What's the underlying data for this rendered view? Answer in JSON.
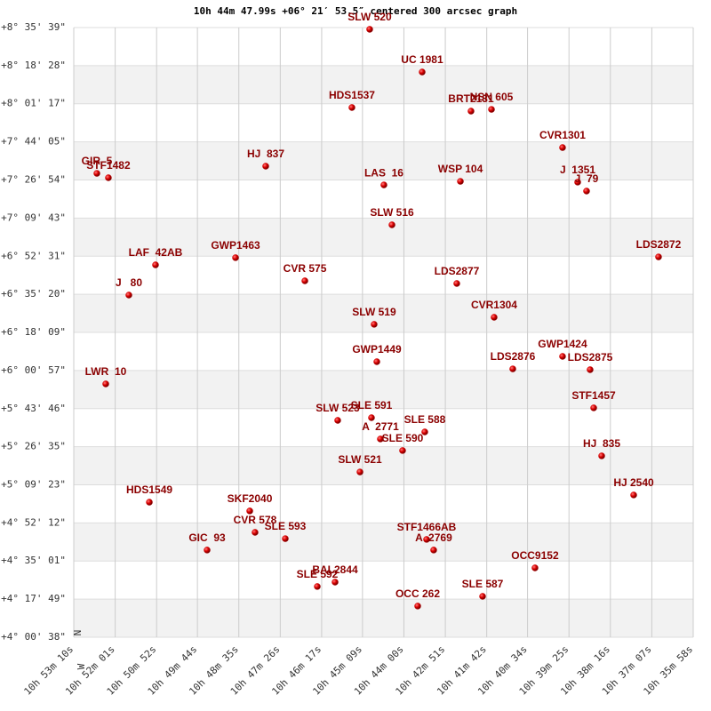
{
  "chart_data": {
    "type": "scatter",
    "title": "10h 44m 47.99s +06° 21′ 53.5″ centered 300 arcsec graph",
    "compass": {
      "north": "N",
      "west": "W"
    },
    "xlim": [
      3190,
      2158
    ],
    "xticks": [
      {
        "value": 3190,
        "label": "10h 53m 10s"
      },
      {
        "value": 3121,
        "label": "10h 52m 01s"
      },
      {
        "value": 3052,
        "label": "10h 50m 52s"
      },
      {
        "value": 2984,
        "label": "10h 49m 44s"
      },
      {
        "value": 2915,
        "label": "10h 48m 35s"
      },
      {
        "value": 2846,
        "label": "10h 47m 26s"
      },
      {
        "value": 2777,
        "label": "10h 46m 17s"
      },
      {
        "value": 2709,
        "label": "10h 45m 09s"
      },
      {
        "value": 2640,
        "label": "10h 44m 00s"
      },
      {
        "value": 2571,
        "label": "10h 42m 51s"
      },
      {
        "value": 2502,
        "label": "10h 41m 42s"
      },
      {
        "value": 2434,
        "label": "10h 40m 34s"
      },
      {
        "value": 2365,
        "label": "10h 39m 25s"
      },
      {
        "value": 2296,
        "label": "10h 38m 16s"
      },
      {
        "value": 2227,
        "label": "10h 37m 07s"
      },
      {
        "value": 2158,
        "label": "10h 35m 58s"
      }
    ],
    "ylim": [
      4.0106,
      8.5942
    ],
    "yticks": [
      {
        "value": 8.5942,
        "label": "+8° 35' 39\""
      },
      {
        "value": 8.3078,
        "label": "+8° 18' 28\""
      },
      {
        "value": 8.0214,
        "label": "+8° 01' 17\""
      },
      {
        "value": 7.7347,
        "label": "+7° 44' 05\""
      },
      {
        "value": 7.4483,
        "label": "+7° 26' 54\""
      },
      {
        "value": 7.1619,
        "label": "+7° 09' 43\""
      },
      {
        "value": 6.8753,
        "label": "+6° 52' 31\""
      },
      {
        "value": 6.5889,
        "label": "+6° 35' 20\""
      },
      {
        "value": 6.3025,
        "label": "+6° 18' 09\""
      },
      {
        "value": 6.0158,
        "label": "+6° 00' 57\""
      },
      {
        "value": 5.7294,
        "label": "+5° 43' 46\""
      },
      {
        "value": 5.4431,
        "label": "+5° 26' 35\""
      },
      {
        "value": 5.1564,
        "label": "+5° 09' 23\""
      },
      {
        "value": 4.87,
        "label": "+4° 52' 12\""
      },
      {
        "value": 4.5836,
        "label": "+4° 35' 01\""
      },
      {
        "value": 4.2969,
        "label": "+4° 17' 49\""
      },
      {
        "value": 4.0106,
        "label": "+4° 00' 38\""
      }
    ],
    "grid": true,
    "color": "#cc0000",
    "labels": [
      "SLW 520",
      "UC 1981",
      "HDS1537",
      "BRT2131",
      "NSN 605",
      "CVR1301",
      "GIR  5",
      "STF1482",
      "HJ  837",
      "LAS  16",
      "WSP 104",
      "J  1351",
      "J  79",
      "SLW 516",
      "LDS2872",
      "GWP1463",
      "LAF  42AB",
      "CVR 575",
      "LDS2877",
      "J   80",
      "SLW 519",
      "CVR1304",
      "GWP1449",
      "GWP1424",
      "LDS2876",
      "LDS2875",
      "LWR  10",
      "STF1457",
      "SLW 523",
      "SLE 591",
      "SLE 588",
      "A  2771",
      "SLE 590",
      "HJ  835",
      "SLW 521",
      "HJ 2540",
      "HDS1549",
      "SKF2040",
      "CVR 578",
      "SLE 593",
      "GIC  93",
      "STF1466AB",
      "A  2769",
      "OCC9152",
      "SLE 592",
      "BAL2844",
      "OCC 262",
      "SLE 587"
    ],
    "x": [
      2697.0,
      2609.6,
      2726.6,
      2528.2,
      2494.1,
      2375.7,
      3151.5,
      3132.3,
      2870.2,
      2673.3,
      2545.9,
      2350.5,
      2335.7,
      2659.9,
      2215.8,
      2920.5,
      3053.8,
      2805.0,
      2551.9,
      3098.2,
      2689.6,
      2489.7,
      2685.1,
      2375.7,
      2458.6,
      2329.8,
      3136.7,
      2323.8,
      2750.3,
      2694.0,
      2605.2,
      2679.2,
      2642.2,
      2310.5,
      2713.2,
      2257.2,
      3064.1,
      2896.8,
      2888.0,
      2837.6,
      2967.9,
      2602.2,
      2590.4,
      2421.6,
      2784.3,
      2754.7,
      2617.0,
      2508.9
    ],
    "y": [
      8.581,
      8.26,
      7.993,
      7.966,
      7.979,
      7.692,
      7.498,
      7.465,
      7.552,
      7.411,
      7.438,
      7.432,
      7.365,
      7.111,
      6.87,
      6.864,
      6.81,
      6.69,
      6.67,
      6.583,
      6.363,
      6.416,
      6.082,
      6.122,
      6.028,
      6.022,
      5.915,
      5.735,
      5.641,
      5.661,
      5.554,
      5.501,
      5.414,
      5.374,
      5.253,
      5.08,
      5.026,
      4.96,
      4.799,
      4.752,
      4.666,
      4.746,
      4.666,
      4.532,
      4.392,
      4.425,
      4.245,
      4.318
    ]
  }
}
